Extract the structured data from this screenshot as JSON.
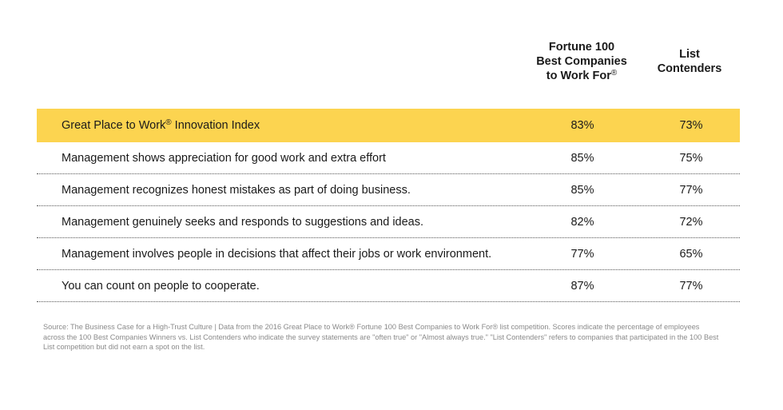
{
  "chart_data": {
    "type": "table",
    "columns": [
      {
        "lines": [
          "Fortune 100",
          "Best Companies",
          "to Work For®"
        ]
      },
      {
        "lines": [
          "List",
          "Contenders"
        ]
      }
    ],
    "rows": [
      {
        "label": "Great Place to Work® Innovation Index",
        "fortune": "83%",
        "contenders": "73%",
        "highlight": true
      },
      {
        "label": "Management shows appreciation for good work and extra effort",
        "fortune": "85%",
        "contenders": "75%"
      },
      {
        "label": "Management recognizes honest mistakes as part of doing business.",
        "fortune": "85%",
        "contenders": "77%"
      },
      {
        "label": "Management genuinely seeks and responds to suggestions and ideas.",
        "fortune": "82%",
        "contenders": "72%"
      },
      {
        "label": "Management involves people in decisions that affect their jobs or work environment.",
        "fortune": "77%",
        "contenders": "65%"
      },
      {
        "label": "You can count on people to cooperate.",
        "fortune": "87%",
        "contenders": "77%"
      }
    ],
    "highlight_color": "#fcd450"
  },
  "source_note": "Source: The Business Case for a High-Trust Culture | Data from the 2016 Great Place to Work® Fortune 100 Best Companies to Work For® list competition. Scores indicate the percentage of employees across the 100 Best Companies Winners vs. List Contenders who indicate the survey statements are \"often true\" or \"Almost always true.\" \"List Contenders\" refers to companies that participated in the 100 Best List competition but did not earn a spot on the list."
}
